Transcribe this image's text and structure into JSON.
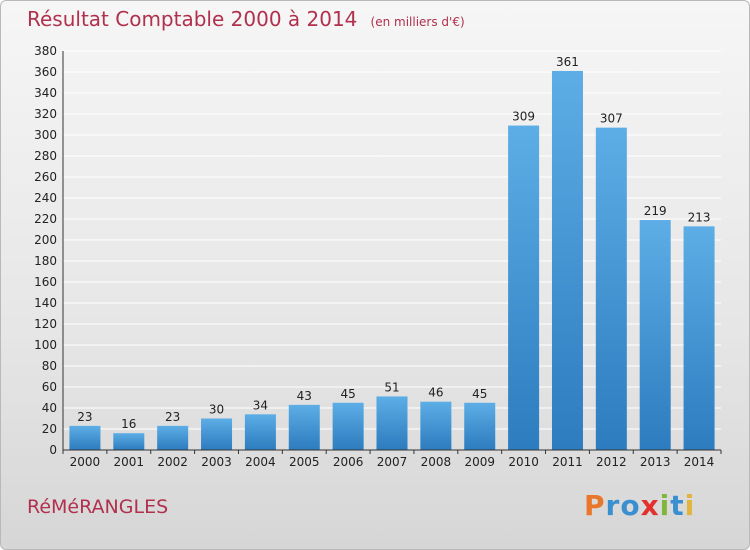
{
  "title": "Résultat Comptable 2000 à 2014",
  "subtitle": "(en milliers d'€)",
  "location": "RéMéRANGLES",
  "brand": "Proxiti",
  "colors": {
    "title": "#b0304e",
    "bar_light": "#5dade6",
    "bar_dark": "#2c7cbf",
    "grid": "#ffffff",
    "brand_letters": [
      "#e9772b",
      "#3a8fd0",
      "#3a8fd0",
      "#e3312c",
      "#80b63e",
      "#3a8fd0",
      "#e3b43b"
    ]
  },
  "chart_data": {
    "type": "bar",
    "title": "Résultat Comptable 2000 à 2014",
    "subtitle": "(en milliers d'€)",
    "categories": [
      "2000",
      "2001",
      "2002",
      "2003",
      "2004",
      "2005",
      "2006",
      "2007",
      "2008",
      "2009",
      "2010",
      "2011",
      "2012",
      "2013",
      "2014"
    ],
    "values": [
      23,
      16,
      23,
      30,
      34,
      43,
      45,
      51,
      46,
      45,
      309,
      361,
      307,
      219,
      213
    ],
    "ylim": [
      0,
      380
    ],
    "yticks": [
      0,
      20,
      40,
      60,
      80,
      100,
      120,
      140,
      160,
      180,
      200,
      220,
      240,
      260,
      280,
      300,
      320,
      340,
      360,
      380
    ],
    "grid": true,
    "legend": "none"
  }
}
